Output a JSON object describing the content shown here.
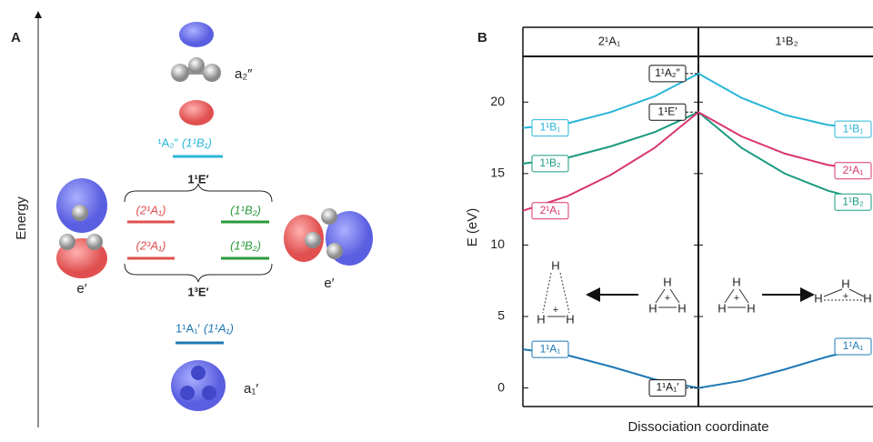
{
  "panel_a": {
    "label": "A",
    "axis_label": "Energy",
    "top_orbital": "a₂″",
    "top_state": {
      "name": "¹A₂″",
      "alt": "(1¹B₁)"
    },
    "singlet_group": "1¹E′",
    "singlet_states": [
      "(2¹A₁)",
      "(1¹B₂)"
    ],
    "triplet_states": [
      "(2³A₁)",
      "(1³B₂)"
    ],
    "triplet_group": "1³E′",
    "side_orbitals": [
      "e′",
      "e′"
    ],
    "ground_state": {
      "name": "1¹A₁′",
      "alt": "(1¹A₁)"
    },
    "bottom_orbital": "a₁′"
  },
  "chart_data": {
    "type": "line",
    "panel_label": "B",
    "columns": [
      "2¹A₁",
      "1¹B₂"
    ],
    "ylabel": "E (eV)",
    "xlabel": "Dissociation coordinate",
    "categories": [
      null,
      null,
      null,
      null,
      null,
      null,
      null,
      null,
      null
    ],
    "ylim": [
      -1.3,
      23.2
    ],
    "yticks": [
      0,
      5,
      10,
      15,
      20
    ],
    "series": [
      {
        "name": "1¹B₁",
        "color": "#29b6d8",
        "center_label": "1¹A₂″",
        "values": [
          18.2,
          18.5,
          19.3,
          20.4,
          22,
          20.3,
          19.1,
          18.4,
          18.1
        ]
      },
      {
        "name": "1¹B₂",
        "color": "#1a9a80",
        "center_label": "1¹E′",
        "values": [
          15.7,
          16.1,
          16.9,
          17.9,
          19.3,
          16.8,
          15.0,
          13.8,
          13.0
        ]
      },
      {
        "name": "2¹A₁",
        "color": "#d9346f",
        "values": [
          12.4,
          13.4,
          14.9,
          16.8,
          19.3,
          17.6,
          16.4,
          15.6,
          15.2
        ]
      },
      {
        "name": "1¹A₁",
        "color": "#1f78b4",
        "center_label": "1¹A₁′",
        "values": [
          2.7,
          2.3,
          1.5,
          0.6,
          0,
          0.5,
          1.3,
          2.2,
          2.9
        ]
      }
    ],
    "inset": {
      "atom": "H",
      "charge": "+"
    }
  }
}
